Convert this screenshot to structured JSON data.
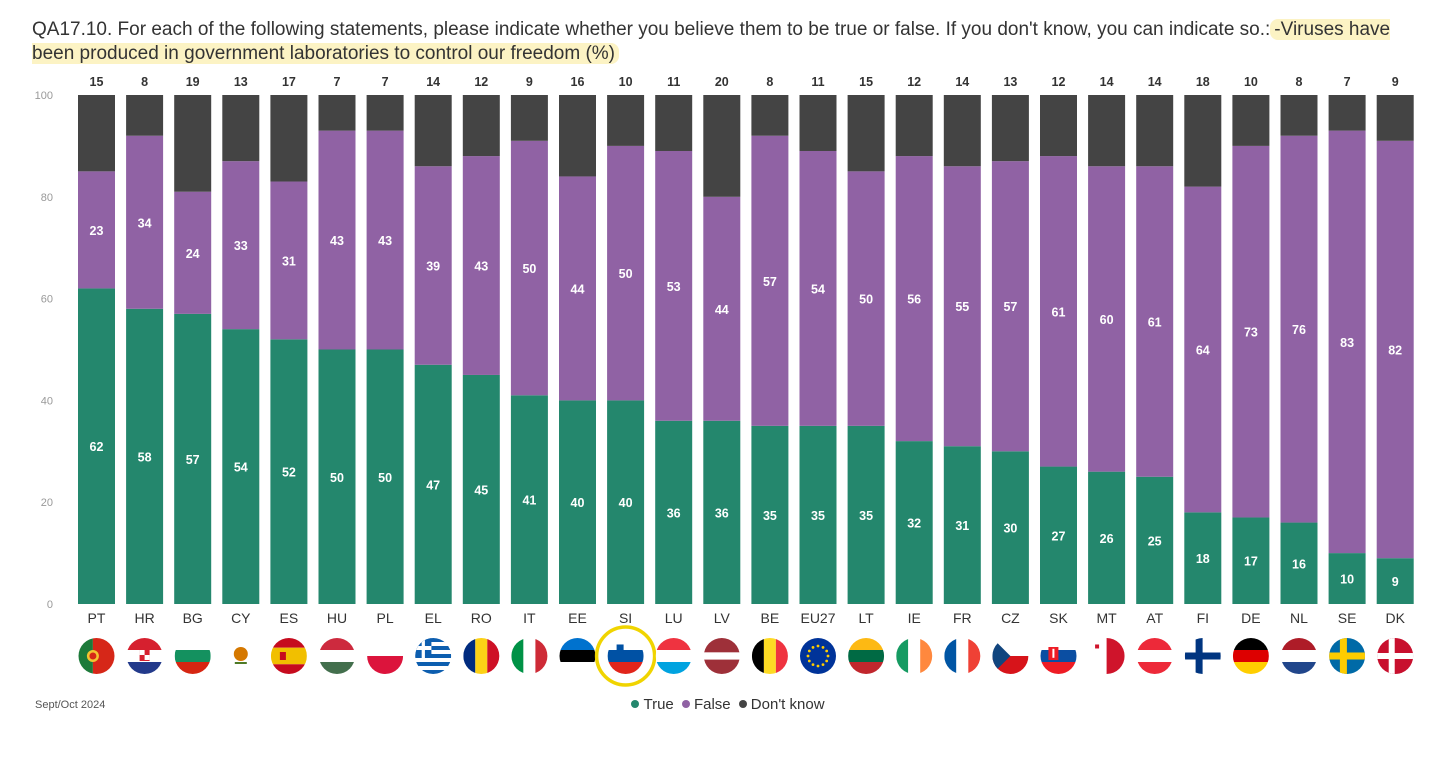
{
  "title": {
    "prefix": "QA17.10. For each of the following statements, please indicate whether you believe them to be true or false. If you don't know, you can indicate so.:",
    "highlight": "-Viruses have been produced in government laboratories to control our freedom (%)"
  },
  "footnote": "Sept/Oct 2024",
  "colors": {
    "true": "#24876d",
    "false": "#9062a4",
    "dont_know": "#444444",
    "highlight": "#f0d400"
  },
  "chart_data": {
    "type": "bar",
    "stacked": true,
    "ylim": [
      0,
      100
    ],
    "yticks": [
      0,
      20,
      40,
      60,
      80,
      100
    ],
    "grid": false,
    "legend_position": "bottom-center",
    "categories": [
      "PT",
      "HR",
      "BG",
      "CY",
      "ES",
      "HU",
      "PL",
      "EL",
      "RO",
      "IT",
      "EE",
      "SI",
      "LU",
      "LV",
      "BE",
      "EU27",
      "LT",
      "IE",
      "FR",
      "CZ",
      "SK",
      "MT",
      "AT",
      "FI",
      "DE",
      "NL",
      "SE",
      "DK"
    ],
    "highlighted_category": "SI",
    "series": [
      {
        "name": "True",
        "values": [
          62,
          58,
          57,
          54,
          52,
          50,
          50,
          47,
          45,
          41,
          40,
          40,
          36,
          36,
          35,
          35,
          35,
          32,
          31,
          30,
          27,
          26,
          25,
          18,
          17,
          16,
          10,
          9
        ]
      },
      {
        "name": "False",
        "values": [
          23,
          34,
          24,
          33,
          31,
          43,
          43,
          39,
          43,
          50,
          44,
          50,
          53,
          44,
          57,
          54,
          50,
          56,
          55,
          57,
          61,
          60,
          61,
          64,
          73,
          76,
          83,
          82
        ]
      },
      {
        "name": "Don't know",
        "values": [
          15,
          8,
          19,
          13,
          17,
          7,
          7,
          14,
          12,
          9,
          16,
          10,
          11,
          20,
          8,
          11,
          15,
          12,
          14,
          13,
          12,
          14,
          14,
          18,
          10,
          8,
          7,
          9
        ]
      }
    ]
  },
  "legend": [
    {
      "label": "True",
      "color": "#24876d"
    },
    {
      "label": "False",
      "color": "#9062a4"
    },
    {
      "label": "Don't know",
      "color": "#444444"
    }
  ]
}
